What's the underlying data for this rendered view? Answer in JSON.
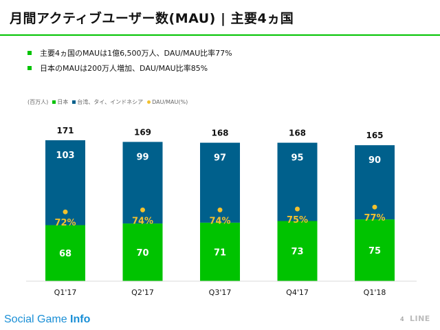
{
  "title": "月間アクティブユーザー数(MAU) | 主要4ヵ国",
  "bullets": [
    "主要4ヵ国のMAUは1億6,500万人、DAU/MAU比率77%",
    "日本のMAUは200万人増加、DAU/MAU比率85%"
  ],
  "legend": {
    "unit": "(百万人)",
    "items": [
      {
        "label": "日本",
        "color": "#00c300",
        "shape": "square"
      },
      {
        "label": "台湾、タイ、インドネシア",
        "color": "#00608c",
        "shape": "square"
      },
      {
        "label": "DAU/MAU(%)",
        "color": "#f2c12e",
        "shape": "dot"
      }
    ]
  },
  "chart_data": {
    "type": "bar",
    "stacked": true,
    "categories": [
      "Q1'17",
      "Q2'17",
      "Q3'17",
      "Q4'17",
      "Q1'18"
    ],
    "series": [
      {
        "name": "日本",
        "values": [
          68,
          70,
          71,
          73,
          75
        ],
        "color": "#00c300"
      },
      {
        "name": "台湾、タイ、インドネシア",
        "values": [
          103,
          99,
          97,
          95,
          90
        ],
        "color": "#00608c"
      }
    ],
    "totals": [
      171,
      169,
      168,
      168,
      165
    ],
    "dau_mau": {
      "name": "DAU/MAU(%)",
      "values": [
        72,
        74,
        74,
        75,
        77
      ],
      "color": "#f2c12e"
    },
    "ylabel": "(百万人)",
    "ylim": [
      0,
      171
    ],
    "grid": false
  },
  "footer": {
    "brand_regular": "Social Game ",
    "brand_bold": "Info",
    "page_number": "4",
    "company": "LINE"
  }
}
